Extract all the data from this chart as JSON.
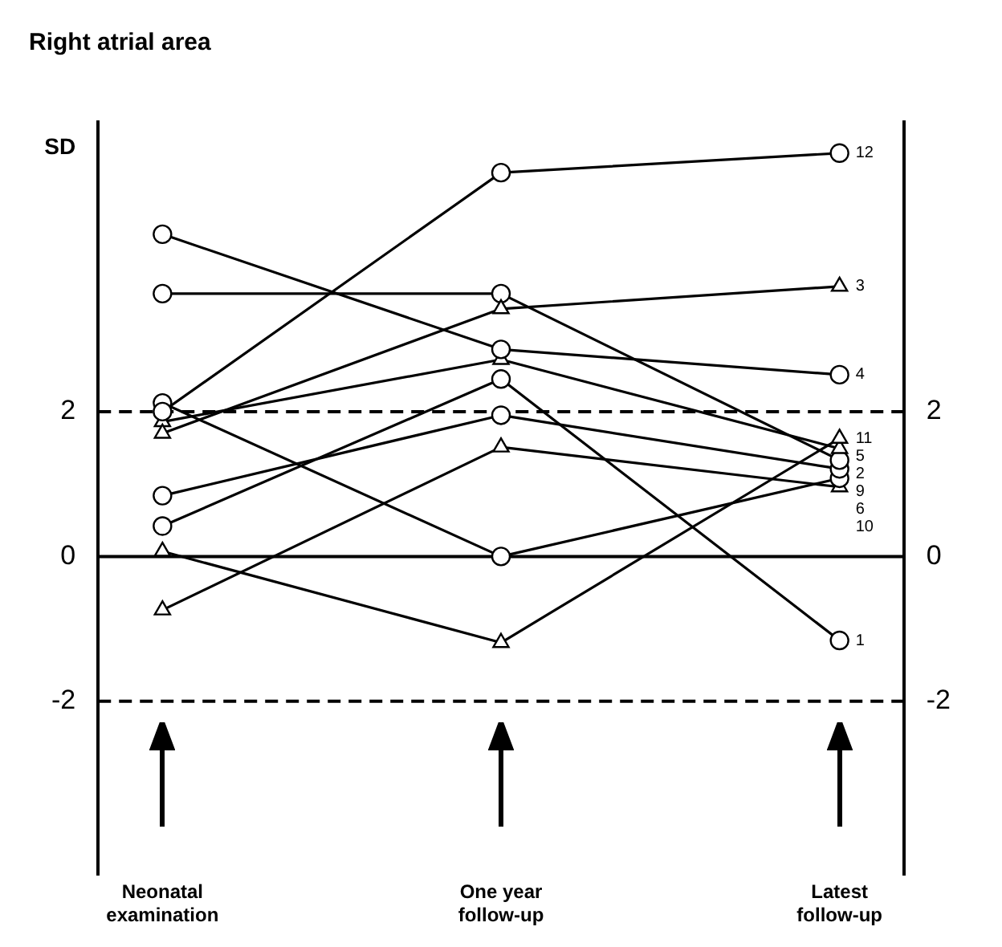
{
  "chart_data": {
    "type": "line",
    "title": "Right atrial area",
    "ylabel": "SD",
    "categories": [
      "Neonatal examination",
      "One year follow-up",
      "Latest follow-up"
    ],
    "series": [
      {
        "name": "12",
        "color": "#000000",
        "marker": "circle",
        "values": [
          2.0,
          5.3,
          5.57
        ]
      },
      {
        "name": "3",
        "color": "#000000",
        "marker": "triangle",
        "values": [
          1.7,
          3.42,
          3.73
        ]
      },
      {
        "name": "4",
        "color": "#000000",
        "marker": "circle",
        "values": [
          4.45,
          2.86,
          2.51
        ]
      },
      {
        "name": "11",
        "color": "#000000",
        "marker": "triangle",
        "values": [
          0.07,
          -1.19,
          1.63
        ]
      },
      {
        "name": "5",
        "color": "#000000",
        "marker": "triangle",
        "values": [
          1.86,
          2.72,
          1.49
        ]
      },
      {
        "name": "2",
        "color": "#000000",
        "marker": "circle",
        "values": [
          3.63,
          3.63,
          1.33
        ]
      },
      {
        "name": "9",
        "color": "#000000",
        "marker": "circle",
        "values": [
          0.84,
          1.95,
          1.21
        ]
      },
      {
        "name": "6",
        "color": "#000000",
        "marker": "circle",
        "values": [
          2.12,
          0,
          1.08
        ]
      },
      {
        "name": "10",
        "color": "#000000",
        "marker": "triangle",
        "values": [
          -0.74,
          1.51,
          0.96
        ]
      },
      {
        "name": "1",
        "color": "#000000",
        "marker": "circle",
        "values": [
          0.42,
          2.45,
          -1.16
        ]
      }
    ],
    "ylim": [
      -4.4,
      6
    ],
    "yticks": [
      -2,
      0,
      2
    ],
    "y2lim": [
      -4.4,
      6
    ],
    "y2ticks": [
      -2,
      0,
      2
    ],
    "ref_lines": [
      {
        "axis": "y",
        "value": 2,
        "line_style": "dashed"
      },
      {
        "axis": "y",
        "value": 0,
        "line_style": "solid"
      },
      {
        "axis": "y",
        "value": -2,
        "line_style": "dashed"
      }
    ],
    "grid": false,
    "legend": false,
    "line_style": "solid"
  }
}
